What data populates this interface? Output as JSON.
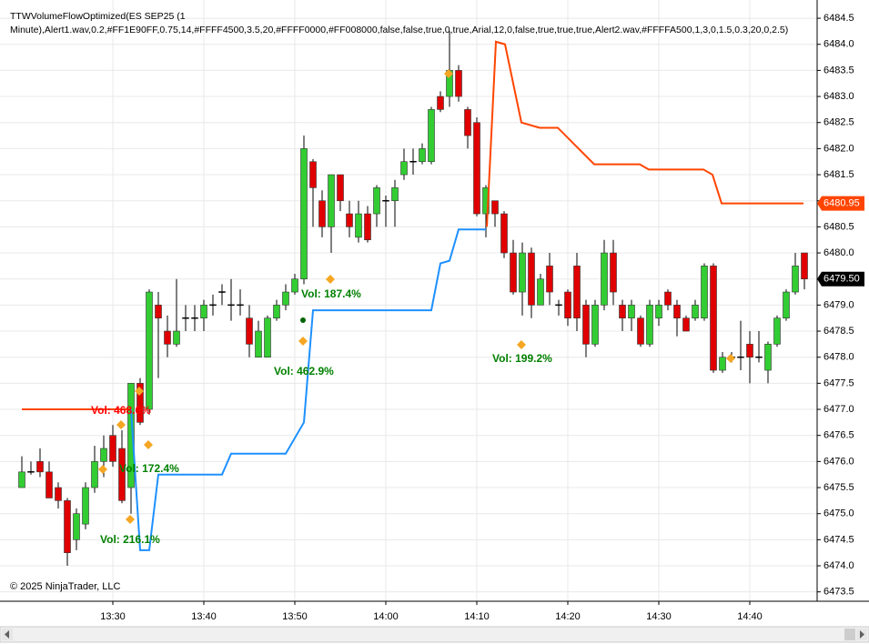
{
  "chart_data": {
    "type": "candlestick",
    "title": "TTWVolumeFlowOptimized(ES SEP25 (1 Minute),Alert1.wav,0.2,#FF1E90FF,0.75,14,#FFFF4500,3.5,20,#FFFF0000,#FF008000,false,false,true,0,true,Arial,12,0,false,true,true,true,Alert2.wav,#FFFFA500,1,3,0,1.5,0.3,20,0,2.5)",
    "copyright": "© 2025 NinjaTrader, LLC",
    "xlim": [
      797.6,
      887.4
    ],
    "xticks": [
      {
        "value": 810,
        "label": "13:30"
      },
      {
        "value": 820,
        "label": "13:40"
      },
      {
        "value": 830,
        "label": "13:50"
      },
      {
        "value": 840,
        "label": "14:00"
      },
      {
        "value": 850,
        "label": "14:10"
      },
      {
        "value": 860,
        "label": "14:20"
      },
      {
        "value": 870,
        "label": "14:30"
      },
      {
        "value": 880,
        "label": "14:40"
      }
    ],
    "ylim": [
      6473.32,
      6484.85
    ],
    "yticks": [
      {
        "value": 6473.5,
        "label": "6473.5"
      },
      {
        "value": 6474,
        "label": "6474.0"
      },
      6474.5,
      {
        "value": 6475,
        "label": "6475.0"
      },
      6475.5,
      {
        "value": 6476,
        "label": "6476.0"
      },
      6476.5,
      {
        "value": 6477,
        "label": "6477.0"
      },
      6477.5,
      {
        "value": 6478,
        "label": "6478.0"
      },
      6478.5,
      {
        "value": 6479,
        "label": "6479.0"
      },
      6479.5,
      {
        "value": 6480,
        "label": "6480.0"
      },
      6480.5,
      {
        "value": 6481,
        "label": "6481.0"
      },
      6481.5,
      {
        "value": 6482,
        "label": "6482.0"
      },
      6482.5,
      {
        "value": 6483,
        "label": "6483.0"
      },
      6483.5,
      {
        "value": 6484,
        "label": "6484.0"
      },
      6484.5
    ],
    "grid": true,
    "up_color": "#32cd32",
    "down_color": "#e00000",
    "x": [
      800,
      801,
      802,
      803,
      804,
      805,
      806,
      807,
      808,
      809,
      810,
      811,
      812,
      813,
      814,
      815,
      816,
      817,
      818,
      819,
      820,
      821,
      822,
      823,
      824,
      825,
      826,
      827,
      828,
      829,
      830,
      831,
      832,
      833,
      834,
      835,
      836,
      837,
      838,
      839,
      840,
      841,
      842,
      843,
      844,
      845,
      846,
      847,
      848,
      849,
      850,
      851,
      852,
      853,
      854,
      855,
      856,
      857,
      858,
      859,
      860,
      861,
      862,
      863,
      864,
      865,
      866,
      867,
      868,
      869,
      870,
      871,
      872,
      873,
      874,
      875,
      876,
      877,
      878,
      879,
      880,
      881,
      882,
      883,
      884,
      885,
      886
    ],
    "open": [
      6475.5,
      6475.8,
      6476,
      6475.8,
      6475.5,
      6475.25,
      6474.5,
      6474.8,
      6475.5,
      6476,
      6476.5,
      6476.25,
      6475.5,
      6477.5,
      6477,
      6479,
      6478.5,
      6478.25,
      6478.75,
      6478.75,
      6478.75,
      6479,
      6479.25,
      6479,
      6479,
      6478.75,
      6478,
      6478,
      6478.75,
      6479,
      6479.25,
      6479.5,
      6481.75,
      6481,
      6480.5,
      6481.5,
      6480.75,
      6480.3,
      6480.75,
      6480.75,
      6481,
      6481,
      6481.5,
      6481.75,
      6481.75,
      6481.75,
      6483,
      6483,
      6483.5,
      6482.75,
      6482.5,
      6480.75,
      6481,
      6480.75,
      6480,
      6479.25,
      6480,
      6479,
      6479.75,
      6479,
      6479.25,
      6479.75,
      6479,
      6478.25,
      6479,
      6480,
      6479,
      6478.75,
      6478.75,
      6478.25,
      6478.75,
      6479.25,
      6479,
      6478.75,
      6478.75,
      6478.75,
      6479.75,
      6477.75,
      6478,
      6478,
      6478.25,
      6478,
      6477.75,
      6478.25,
      6478.75,
      6479.25,
      6480
    ],
    "high": [
      6476.1,
      6476,
      6476.25,
      6476,
      6475.6,
      6475.3,
      6475.1,
      6475.6,
      6476.3,
      6476.5,
      6476.7,
      6476.6,
      6477.5,
      6477.6,
      6479.3,
      6479.25,
      6478.8,
      6479.5,
      6479,
      6479,
      6479.1,
      6479.2,
      6479.4,
      6479.5,
      6479.3,
      6479,
      6478.7,
      6478.8,
      6479.1,
      6479.4,
      6479.6,
      6482.25,
      6481.8,
      6481.2,
      6481.5,
      6481.5,
      6481,
      6481,
      6480.9,
      6481.3,
      6481.1,
      6481.4,
      6482,
      6482,
      6482.1,
      6482.8,
      6483.1,
      6484.25,
      6483.6,
      6482.8,
      6482.6,
      6481.3,
      6481,
      6480.8,
      6480.25,
      6480.2,
      6480.1,
      6479.6,
      6480,
      6479.1,
      6479.3,
      6480,
      6479.1,
      6479.1,
      6480.25,
      6480.25,
      6479.1,
      6479.1,
      6478.8,
      6479.1,
      6479.1,
      6479.3,
      6479.1,
      6478.8,
      6479.1,
      6479.8,
      6479.8,
      6478.1,
      6478.1,
      6478.7,
      6478.5,
      6478.5,
      6478.3,
      6478.8,
      6479.3,
      6480,
      6480
    ],
    "low": [
      6475.5,
      6475.75,
      6475.7,
      6475.3,
      6475.1,
      6474,
      6474.3,
      6474.7,
      6475.4,
      6475.7,
      6475.9,
      6475.2,
      6475,
      6476.7,
      6476.9,
      6477.6,
      6478,
      6478.2,
      6478.5,
      6478.5,
      6478.5,
      6478.8,
      6479,
      6478.7,
      6478.8,
      6478,
      6478,
      6478,
      6478.7,
      6478.9,
      6479.2,
      6479.4,
      6480.5,
      6480.3,
      6480,
      6480.8,
      6480.3,
      6480.2,
      6480.2,
      6480.5,
      6480.5,
      6480.5,
      6481.4,
      6481.5,
      6481.7,
      6481.7,
      6482.7,
      6482.8,
      6482.9,
      6482,
      6480.7,
      6480.3,
      6480.5,
      6479.9,
      6479.2,
      6478.8,
      6478.75,
      6479,
      6479,
      6478.8,
      6478.6,
      6478.5,
      6478,
      6478.2,
      6478.9,
      6479,
      6478.5,
      6478.5,
      6478.2,
      6478.2,
      6478.6,
      6478.9,
      6478.4,
      6478.5,
      6478.7,
      6478.7,
      6477.7,
      6477.7,
      6477.9,
      6477.75,
      6477.5,
      6477.9,
      6477.5,
      6478.2,
      6478.7,
      6479.2,
      6479.3
    ],
    "close": [
      6475.8,
      6475.8,
      6475.8,
      6475.3,
      6475.25,
      6474.25,
      6475,
      6475.5,
      6476,
      6476.25,
      6476,
      6475.25,
      6477.5,
      6476.75,
      6479.25,
      6478.75,
      6478.25,
      6478.5,
      6478.75,
      6478.75,
      6479,
      6479,
      6479.25,
      6479,
      6479,
      6478.25,
      6478.5,
      6478.75,
      6479,
      6479.25,
      6479.5,
      6482,
      6481.25,
      6480.5,
      6481.5,
      6481,
      6480.5,
      6480.75,
      6480.25,
      6481.25,
      6481,
      6481.25,
      6481.75,
      6481.75,
      6482,
      6482.75,
      6482.75,
      6483.5,
      6483,
      6482.25,
      6480.75,
      6481.25,
      6480.75,
      6480,
      6479.25,
      6480,
      6479,
      6479.5,
      6479.25,
      6479,
      6478.75,
      6478.75,
      6478.25,
      6479,
      6480,
      6479.25,
      6478.75,
      6479,
      6478.25,
      6479,
      6479,
      6479,
      6478.75,
      6478.5,
      6479,
      6479.75,
      6477.75,
      6478,
      6478,
      6478,
      6478,
      6478,
      6478.25,
      6478.75,
      6479.25,
      6479.75,
      6479.5
    ],
    "series": [
      {
        "color": "#ff4500",
        "x": [
          800,
          812,
          813,
          851.1,
          852.1,
          853.1,
          854.9,
          856.9,
          858.9,
          860.9,
          862.9,
          867.9,
          868.9,
          874.9,
          875.9,
          876.9,
          885.9
        ],
        "values": [
          6477,
          6477,
          null,
          6480.5,
          6484.05,
          6484,
          6482.5,
          6482.4,
          6482.4,
          6482.05,
          6481.7,
          6481.7,
          6481.6,
          6481.6,
          6481.5,
          6480.95,
          6480.95
        ]
      },
      {
        "color": "#1e90ff",
        "x": [
          812,
          813,
          814,
          815,
          822,
          823,
          829,
          831,
          832,
          845,
          846,
          847,
          848,
          851
        ],
        "values": [
          6477,
          6474.3,
          6474.3,
          6475.75,
          6475.75,
          6476.15,
          6476.15,
          6476.75,
          6478.9,
          6478.9,
          6479.8,
          6479.85,
          6480.45,
          6480.45
        ]
      }
    ],
    "price_markers": [
      {
        "value": 6480.95,
        "label": "6480.95",
        "color": "#ff4500"
      },
      {
        "value": 6479.5,
        "label": "6479.50",
        "color": "#000000"
      }
    ],
    "annotations": [
      {
        "text": "Vol: 468.6%",
        "color": "#ff0000"
      },
      {
        "text": "Vol: 172.4%",
        "color": "#008000"
      },
      {
        "text": "Vol: 216.1%",
        "color": "#008000"
      },
      {
        "text": "Vol: 462.9%",
        "color": "#008000"
      },
      {
        "text": "Vol: 187.4%",
        "color": "#008000"
      },
      {
        "text": "Vol: 199.2%",
        "color": "#008000"
      }
    ]
  }
}
